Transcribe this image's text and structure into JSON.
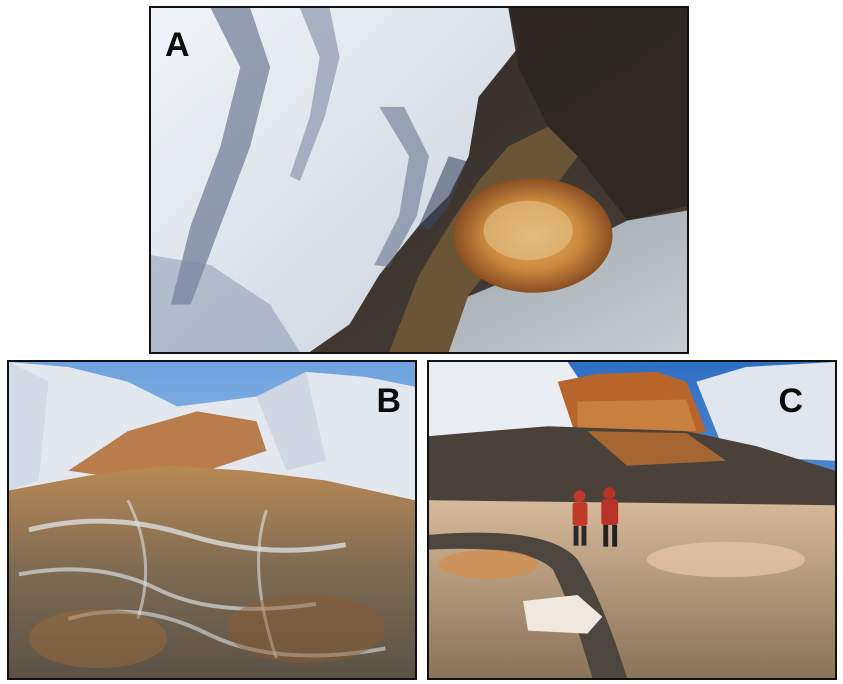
{
  "figure": {
    "panels": [
      {
        "label": "A"
      },
      {
        "label": "B"
      },
      {
        "label": "C"
      }
    ]
  },
  "colors": {
    "border": "#111111",
    "glacier_ice": "#e6ebf2",
    "ice_shadow": "#4a5a7a",
    "bedrock_dark": "#3b3530",
    "iron_oxide_orange": "#c7702a",
    "lake_ice": "#b9c1c8",
    "sky": "#8fb8e6"
  }
}
